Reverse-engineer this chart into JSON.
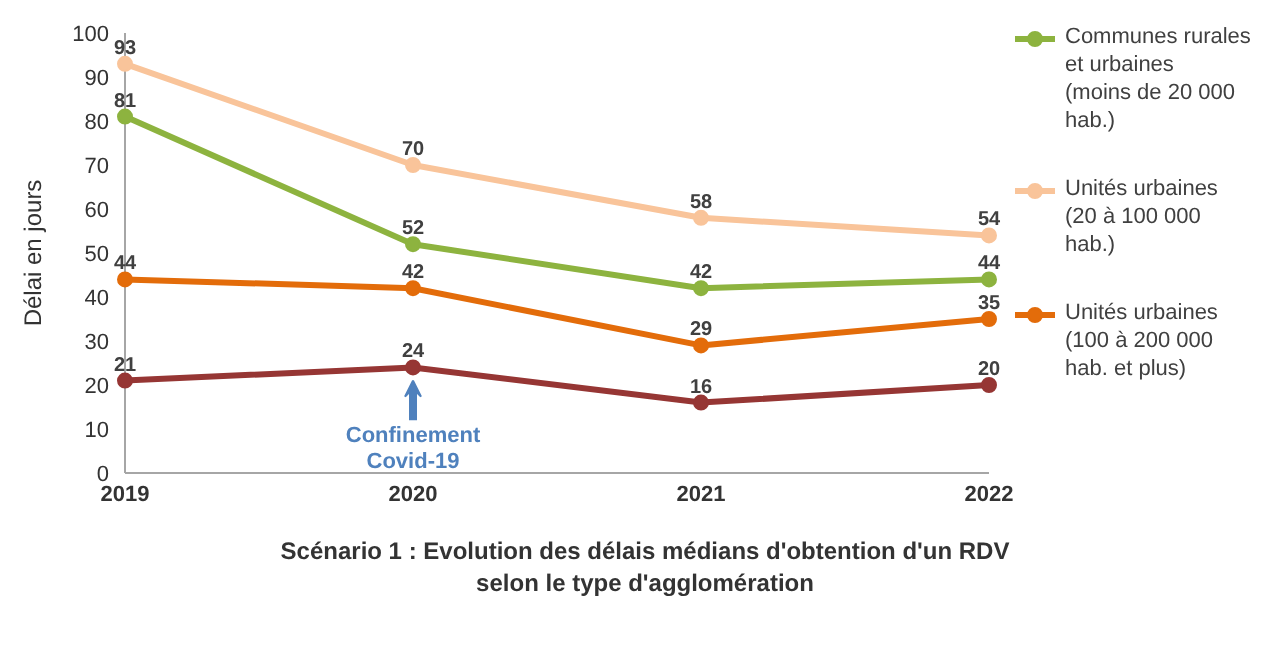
{
  "chart_data": {
    "type": "line",
    "title": "Scénario 1 : Evolution des délais médians d'obtention d'un RDV selon le type d'agglomération",
    "ylabel": "Délai en jours",
    "x": [
      2019,
      2020,
      2021,
      2022
    ],
    "xlim": [
      2019,
      2022
    ],
    "xticks": [
      2019,
      2020,
      2021,
      2022
    ],
    "ylim": [
      0,
      100
    ],
    "yticks": [
      0,
      10,
      20,
      30,
      40,
      50,
      60,
      70,
      80,
      90,
      100
    ],
    "series": [
      {
        "name": "Communes rurales et urbaines (moins de 20 000 hab.)",
        "color": "#8db33f",
        "values": [
          81,
          52,
          42,
          44
        ]
      },
      {
        "name": "Unités urbaines (20 à 100 000 hab.)",
        "color": "#f9c49a",
        "values": [
          93,
          70,
          58,
          54
        ]
      },
      {
        "name": "Unités urbaines (100 à 200 000 hab. et plus)",
        "color": "#e36c0a",
        "values": [
          44,
          42,
          29,
          35
        ]
      },
      {
        "color": "#963634",
        "values": [
          21,
          24,
          16,
          20
        ]
      }
    ],
    "annotations": [
      {
        "text": "Confinement Covid-19",
        "x": 2020,
        "y": 24
      }
    ],
    "data_labels": true,
    "marker": "circle",
    "line_style": "solid",
    "legend": "right",
    "grid": false
  }
}
